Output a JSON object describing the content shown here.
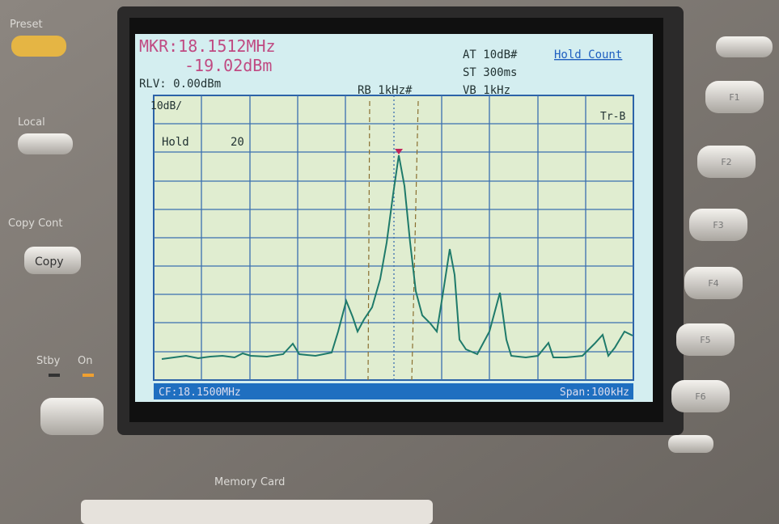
{
  "panel": {
    "left_buttons": [
      "Preset",
      "Local",
      "Copy Cont",
      "Copy",
      "Stby",
      "On"
    ],
    "right_buttons": [
      "F1",
      "F2",
      "F3",
      "F4",
      "F5",
      "F6"
    ],
    "memory_card": "Memory Card"
  },
  "screen": {
    "marker_freq": "MKR:18.1512MHz",
    "marker_level": "-19.02dBm",
    "ref_level": "RLV: 0.00dBm",
    "rbw": "RB 1kHz#",
    "attenuation": "AT 10dB#",
    "sweep_time": "ST 300ms",
    "vbw": "VB 1kHz",
    "hold_count": "Hold Count",
    "scale": "10dB/",
    "trace": "Tr-B",
    "hold_label": "Hold",
    "hold_value": "20",
    "center_freq": "CF:18.1500MHz",
    "span": "Span:100kHz"
  }
}
